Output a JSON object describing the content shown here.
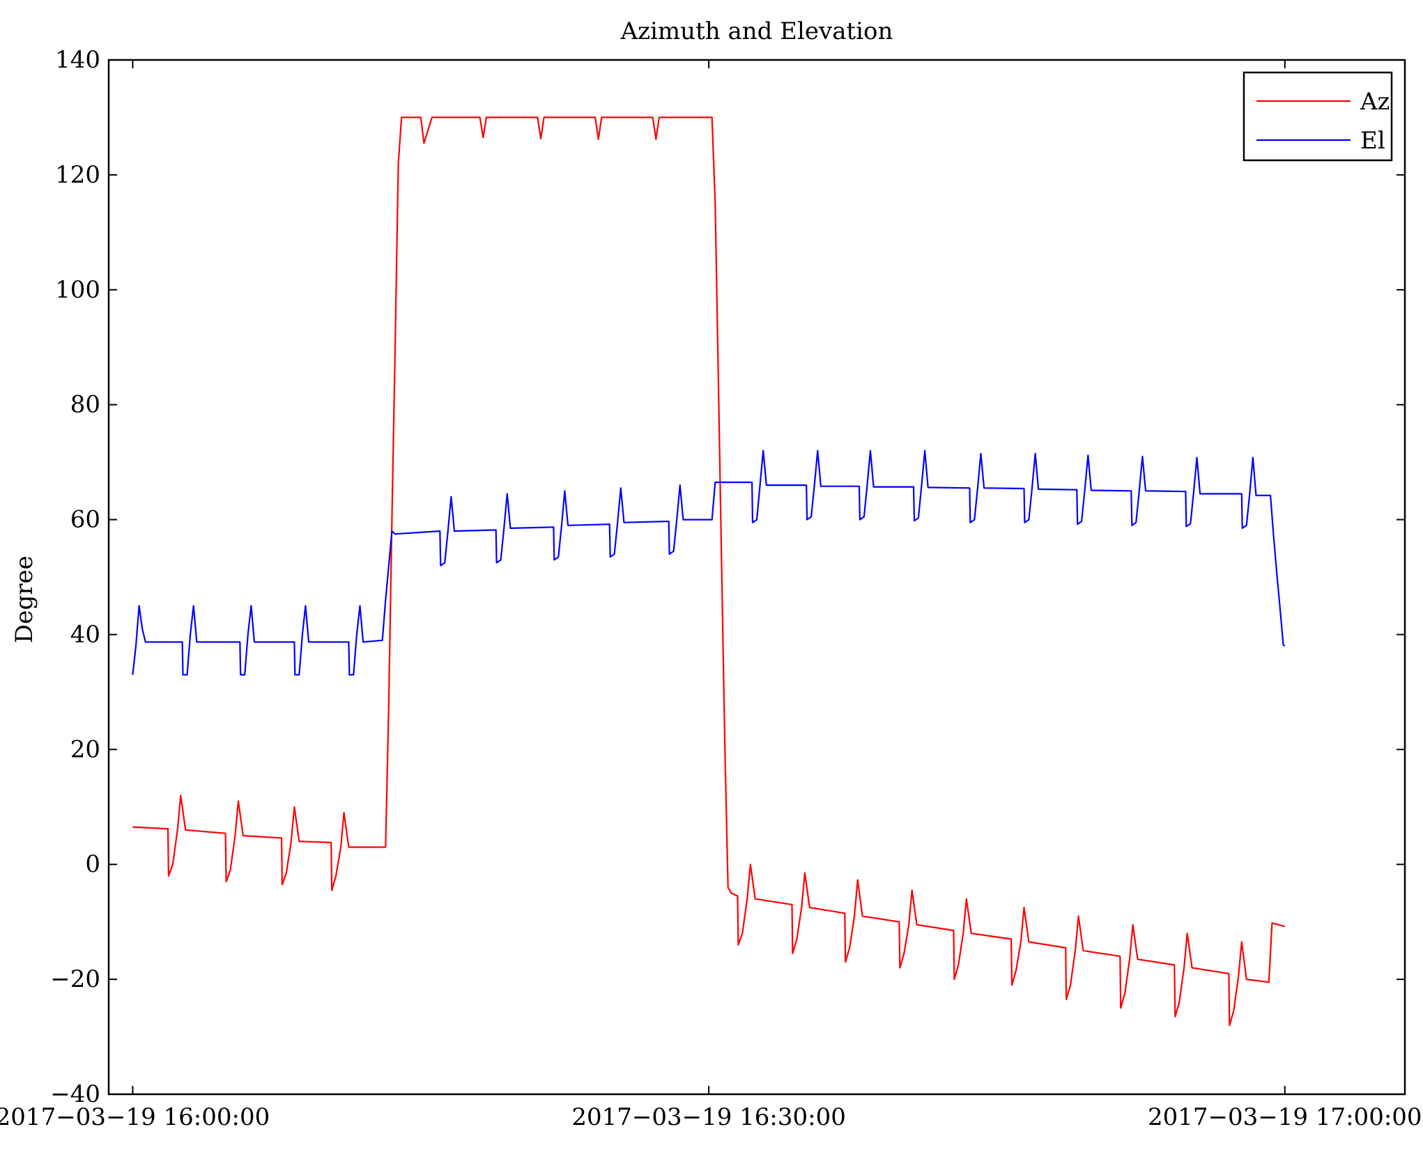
{
  "chart_data": {
    "type": "line",
    "title": "Azimuth and Elevation",
    "xlabel": "",
    "ylabel": "Degree",
    "ylim": [
      -40,
      140
    ],
    "yticks": [
      -40,
      -20,
      0,
      20,
      40,
      60,
      80,
      100,
      120,
      140
    ],
    "ytick_labels": [
      "−40",
      "−20",
      "0",
      "20",
      "40",
      "60",
      "80",
      "100",
      "120",
      "140"
    ],
    "xlim": [
      "2017-03-19 15:58:45",
      "2017-03-19 17:06:15"
    ],
    "xticks": [
      "2017-03-19 16:00:00",
      "2017-03-19 16:30:00",
      "2017-03-19 17:00:00"
    ],
    "xtick_labels": [
      "2017−03−19 16:00:00",
      "2017−03−19 16:30:00",
      "2017−03−19 17:00:00"
    ],
    "grid": false,
    "legend_position": "top-right",
    "series": [
      {
        "name": "Az",
        "color": "#ff0000",
        "points": [
          [
            "16:00:00",
            6.5
          ],
          [
            "16:01:50",
            6.2
          ],
          [
            "16:01:52",
            -2
          ],
          [
            "16:02:05",
            0
          ],
          [
            "16:02:20",
            6
          ],
          [
            "16:02:30",
            12
          ],
          [
            "16:02:45",
            6
          ],
          [
            "16:04:50",
            5.4
          ],
          [
            "16:04:52",
            -3
          ],
          [
            "16:05:05",
            -1
          ],
          [
            "16:05:20",
            5
          ],
          [
            "16:05:30",
            11
          ],
          [
            "16:05:45",
            5
          ],
          [
            "16:07:45",
            4.6
          ],
          [
            "16:07:47",
            -3.5
          ],
          [
            "16:08:00",
            -1.5
          ],
          [
            "16:08:15",
            4
          ],
          [
            "16:08:25",
            10
          ],
          [
            "16:08:40",
            4
          ],
          [
            "16:10:20",
            3.8
          ],
          [
            "16:10:22",
            -4.5
          ],
          [
            "16:10:35",
            -2
          ],
          [
            "16:10:50",
            3
          ],
          [
            "16:11:00",
            9
          ],
          [
            "16:11:15",
            3
          ],
          [
            "16:13:10",
            3
          ],
          [
            "16:13:20",
            28
          ],
          [
            "16:13:30",
            60
          ],
          [
            "16:13:40",
            90
          ],
          [
            "16:13:50",
            122
          ],
          [
            "16:14:00",
            130
          ],
          [
            "16:15:00",
            130
          ],
          [
            "16:15:10",
            125.5
          ],
          [
            "16:15:35",
            130
          ],
          [
            "16:18:05",
            130
          ],
          [
            "16:18:15",
            126.5
          ],
          [
            "16:18:25",
            130
          ],
          [
            "16:21:05",
            130
          ],
          [
            "16:21:15",
            126.3
          ],
          [
            "16:21:25",
            130
          ],
          [
            "16:24:05",
            130
          ],
          [
            "16:24:15",
            126.2
          ],
          [
            "16:24:25",
            130
          ],
          [
            "16:27:05",
            130
          ],
          [
            "16:27:15",
            126.2
          ],
          [
            "16:27:25",
            130
          ],
          [
            "16:30:10",
            130
          ],
          [
            "16:30:20",
            115
          ],
          [
            "16:30:30",
            84
          ],
          [
            "16:30:40",
            52
          ],
          [
            "16:30:50",
            21
          ],
          [
            "16:31:00",
            -4
          ],
          [
            "16:31:10",
            -5
          ],
          [
            "16:31:30",
            -5.5
          ],
          [
            "16:31:32",
            -14
          ],
          [
            "16:31:45",
            -12
          ],
          [
            "16:32:00",
            -6
          ],
          [
            "16:32:10",
            0
          ],
          [
            "16:32:25",
            -6
          ],
          [
            "16:34:20",
            -7
          ],
          [
            "16:34:22",
            -15.5
          ],
          [
            "16:34:35",
            -13
          ],
          [
            "16:34:50",
            -7.5
          ],
          [
            "16:35:00",
            -1.5
          ],
          [
            "16:35:15",
            -7.5
          ],
          [
            "16:37:05",
            -8.5
          ],
          [
            "16:37:07",
            -17
          ],
          [
            "16:37:20",
            -14.5
          ],
          [
            "16:37:35",
            -9
          ],
          [
            "16:37:45",
            -2.7
          ],
          [
            "16:38:00",
            -9
          ],
          [
            "16:39:55",
            -10
          ],
          [
            "16:39:57",
            -18
          ],
          [
            "16:40:10",
            -15.5
          ],
          [
            "16:40:25",
            -10.5
          ],
          [
            "16:40:35",
            -4.5
          ],
          [
            "16:40:50",
            -10.5
          ],
          [
            "16:42:45",
            -11.5
          ],
          [
            "16:42:47",
            -20
          ],
          [
            "16:43:00",
            -17.5
          ],
          [
            "16:43:15",
            -12
          ],
          [
            "16:43:25",
            -6
          ],
          [
            "16:43:40",
            -12
          ],
          [
            "16:45:45",
            -13
          ],
          [
            "16:45:47",
            -21
          ],
          [
            "16:46:00",
            -18.5
          ],
          [
            "16:46:15",
            -13.5
          ],
          [
            "16:46:25",
            -7.5
          ],
          [
            "16:46:40",
            -13.5
          ],
          [
            "16:48:35",
            -14.5
          ],
          [
            "16:48:37",
            -23.5
          ],
          [
            "16:48:50",
            -21
          ],
          [
            "16:49:05",
            -15
          ],
          [
            "16:49:15",
            -9
          ],
          [
            "16:49:30",
            -15
          ],
          [
            "16:51:25",
            -16
          ],
          [
            "16:51:27",
            -25
          ],
          [
            "16:51:40",
            -22.5
          ],
          [
            "16:51:55",
            -16.5
          ],
          [
            "16:52:05",
            -10.5
          ],
          [
            "16:52:20",
            -16.5
          ],
          [
            "16:54:15",
            -17.5
          ],
          [
            "16:54:17",
            -26.5
          ],
          [
            "16:54:30",
            -24
          ],
          [
            "16:54:45",
            -18
          ],
          [
            "16:54:55",
            -12
          ],
          [
            "16:55:10",
            -18
          ],
          [
            "16:57:05",
            -19
          ],
          [
            "16:57:07",
            -28
          ],
          [
            "16:57:20",
            -25.5
          ],
          [
            "16:57:35",
            -19.5
          ],
          [
            "16:57:45",
            -13.5
          ],
          [
            "16:58:00",
            -20
          ],
          [
            "16:59:10",
            -20.5
          ],
          [
            "16:59:20",
            -10.2
          ],
          [
            "17:00:00",
            -10.8
          ]
        ]
      },
      {
        "name": "El",
        "color": "#0000ff",
        "points": [
          [
            "16:00:00",
            33
          ],
          [
            "16:00:10",
            38
          ],
          [
            "16:00:20",
            45
          ],
          [
            "16:00:30",
            41
          ],
          [
            "16:00:40",
            38.7
          ],
          [
            "16:02:35",
            38.7
          ],
          [
            "16:02:37",
            33
          ],
          [
            "16:02:50",
            33
          ],
          [
            "16:03:00",
            40
          ],
          [
            "16:03:10",
            45
          ],
          [
            "16:03:20",
            38.7
          ],
          [
            "16:05:35",
            38.7
          ],
          [
            "16:05:37",
            33
          ],
          [
            "16:05:50",
            33
          ],
          [
            "16:06:00",
            40
          ],
          [
            "16:06:10",
            45
          ],
          [
            "16:06:20",
            38.7
          ],
          [
            "16:08:25",
            38.7
          ],
          [
            "16:08:27",
            33
          ],
          [
            "16:08:40",
            33
          ],
          [
            "16:08:50",
            40
          ],
          [
            "16:09:00",
            45
          ],
          [
            "16:09:10",
            38.7
          ],
          [
            "16:11:15",
            38.7
          ],
          [
            "16:11:17",
            33
          ],
          [
            "16:11:30",
            33
          ],
          [
            "16:11:40",
            40
          ],
          [
            "16:11:50",
            45
          ],
          [
            "16:12:00",
            38.7
          ],
          [
            "16:13:00",
            39
          ],
          [
            "16:13:10",
            46
          ],
          [
            "16:13:20",
            52
          ],
          [
            "16:13:30",
            58
          ],
          [
            "16:13:40",
            57.5
          ],
          [
            "16:16:00",
            58
          ],
          [
            "16:16:02",
            52
          ],
          [
            "16:16:15",
            52.5
          ],
          [
            "16:16:25",
            58
          ],
          [
            "16:16:35",
            64
          ],
          [
            "16:16:45",
            58
          ],
          [
            "16:18:55",
            58.2
          ],
          [
            "16:18:57",
            52.5
          ],
          [
            "16:19:10",
            53
          ],
          [
            "16:19:20",
            58.5
          ],
          [
            "16:19:30",
            64.5
          ],
          [
            "16:19:40",
            58.5
          ],
          [
            "16:21:55",
            58.7
          ],
          [
            "16:21:57",
            53
          ],
          [
            "16:22:10",
            53.5
          ],
          [
            "16:22:20",
            59
          ],
          [
            "16:22:30",
            65
          ],
          [
            "16:22:40",
            59
          ],
          [
            "16:24:50",
            59.2
          ],
          [
            "16:24:52",
            53.5
          ],
          [
            "16:25:05",
            54
          ],
          [
            "16:25:15",
            59.5
          ],
          [
            "16:25:25",
            65.5
          ],
          [
            "16:25:35",
            59.5
          ],
          [
            "16:27:55",
            59.7
          ],
          [
            "16:27:57",
            54
          ],
          [
            "16:28:10",
            54.5
          ],
          [
            "16:28:20",
            60
          ],
          [
            "16:28:30",
            66
          ],
          [
            "16:28:40",
            60
          ],
          [
            "16:30:10",
            60
          ],
          [
            "16:30:20",
            66.5
          ],
          [
            "16:32:15",
            66.5
          ],
          [
            "16:32:17",
            59.5
          ],
          [
            "16:32:30",
            60
          ],
          [
            "16:32:40",
            66
          ],
          [
            "16:32:50",
            72
          ],
          [
            "16:33:00",
            66
          ],
          [
            "16:35:05",
            66
          ],
          [
            "16:35:07",
            60
          ],
          [
            "16:35:20",
            60.5
          ],
          [
            "16:35:30",
            66
          ],
          [
            "16:35:40",
            72
          ],
          [
            "16:35:50",
            65.8
          ],
          [
            "16:37:50",
            65.8
          ],
          [
            "16:37:52",
            60
          ],
          [
            "16:38:05",
            60.5
          ],
          [
            "16:38:15",
            66
          ],
          [
            "16:38:25",
            72
          ],
          [
            "16:38:35",
            65.7
          ],
          [
            "16:40:40",
            65.7
          ],
          [
            "16:40:42",
            59.8
          ],
          [
            "16:40:55",
            60.3
          ],
          [
            "16:41:05",
            66
          ],
          [
            "16:41:15",
            72
          ],
          [
            "16:41:25",
            65.6
          ],
          [
            "16:43:35",
            65.5
          ],
          [
            "16:43:37",
            59.5
          ],
          [
            "16:43:50",
            60
          ],
          [
            "16:44:00",
            65.5
          ],
          [
            "16:44:10",
            71.5
          ],
          [
            "16:44:20",
            65.5
          ],
          [
            "16:46:25",
            65.4
          ],
          [
            "16:46:27",
            59.5
          ],
          [
            "16:46:40",
            60
          ],
          [
            "16:46:50",
            65.5
          ],
          [
            "16:47:00",
            71.5
          ],
          [
            "16:47:10",
            65.3
          ],
          [
            "16:49:10",
            65.2
          ],
          [
            "16:49:12",
            59.2
          ],
          [
            "16:49:25",
            59.7
          ],
          [
            "16:49:35",
            65.2
          ],
          [
            "16:49:45",
            71.2
          ],
          [
            "16:49:55",
            65.1
          ],
          [
            "16:52:00",
            65
          ],
          [
            "16:52:02",
            59
          ],
          [
            "16:52:15",
            59.5
          ],
          [
            "16:52:25",
            65
          ],
          [
            "16:52:35",
            71
          ],
          [
            "16:52:45",
            65
          ],
          [
            "16:54:50",
            64.9
          ],
          [
            "16:54:52",
            58.8
          ],
          [
            "16:55:05",
            59.3
          ],
          [
            "16:55:15",
            64.8
          ],
          [
            "16:55:25",
            70.8
          ],
          [
            "16:55:35",
            64.5
          ],
          [
            "16:57:45",
            64.5
          ],
          [
            "16:57:47",
            58.5
          ],
          [
            "16:58:00",
            59
          ],
          [
            "16:58:10",
            64.5
          ],
          [
            "16:58:20",
            70.8
          ],
          [
            "16:58:30",
            64.2
          ],
          [
            "16:59:15",
            64.2
          ],
          [
            "16:59:25",
            57
          ],
          [
            "16:59:35",
            50.5
          ],
          [
            "16:59:45",
            44.5
          ],
          [
            "16:59:55",
            38.2
          ],
          [
            "17:00:00",
            38
          ]
        ]
      }
    ]
  }
}
